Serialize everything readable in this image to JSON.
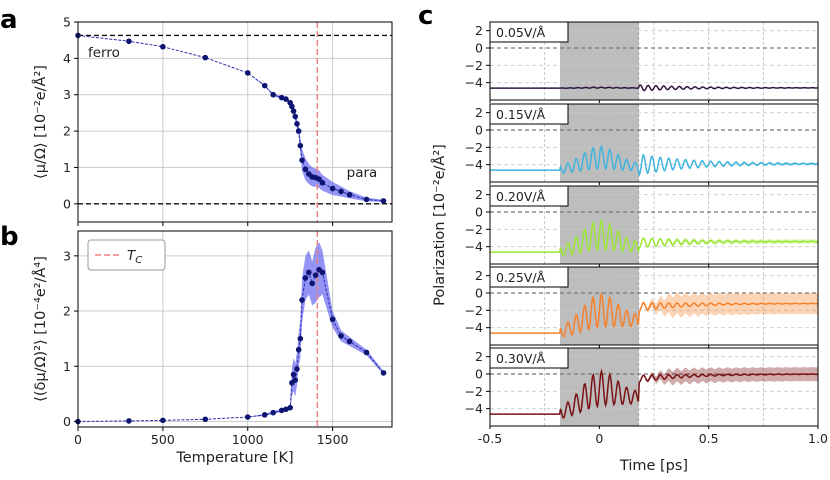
{
  "chart_data": [
    {
      "panel": "a",
      "type": "line",
      "xlabel": "",
      "ylabel": "⟨μ/Ω⟩ [10⁻²e/Å²]",
      "xlim": [
        0,
        1850
      ],
      "ylim": [
        -0.5,
        5
      ],
      "xticks": [
        0,
        500,
        1000,
        1500
      ],
      "yticks": [
        0,
        1,
        2,
        3,
        4,
        5
      ],
      "grid": true,
      "hlines": [
        4.63,
        0
      ],
      "vline": 1410,
      "annotations": [
        "ferro",
        "para"
      ],
      "series": [
        {
          "x": [
            0,
            300,
            500,
            750,
            1000,
            1100,
            1150,
            1200,
            1225,
            1250,
            1260,
            1270,
            1280,
            1290,
            1300,
            1310,
            1320,
            1340,
            1360,
            1380,
            1400,
            1420,
            1440,
            1500,
            1550,
            1600,
            1700,
            1800
          ],
          "y": [
            4.63,
            4.47,
            4.32,
            4.02,
            3.6,
            3.25,
            3.0,
            2.92,
            2.88,
            2.78,
            2.68,
            2.55,
            2.4,
            2.2,
            2.0,
            1.6,
            1.2,
            0.95,
            0.82,
            0.74,
            0.72,
            0.68,
            0.58,
            0.42,
            0.34,
            0.25,
            0.12,
            0.08
          ],
          "band": [
            0,
            0,
            0,
            0,
            0,
            0.02,
            0.03,
            0.04,
            0.04,
            0.05,
            0.06,
            0.08,
            0.1,
            0.12,
            0.14,
            0.22,
            0.3,
            0.3,
            0.28,
            0.26,
            0.25,
            0.24,
            0.22,
            0.18,
            0.14,
            0.1,
            0.05,
            0.03
          ]
        }
      ]
    },
    {
      "panel": "b",
      "type": "line",
      "xlabel": "Temperature [K]",
      "ylabel": "⟨(δμ/Ω)²⟩ [10⁻⁴e²/Å⁴]",
      "xlim": [
        0,
        1850
      ],
      "ylim": [
        -0.1,
        3.45
      ],
      "xticks": [
        0,
        500,
        1000,
        1500
      ],
      "yticks": [
        0,
        1,
        2,
        3
      ],
      "grid": true,
      "vline": 1410,
      "legend": "T_C",
      "legend_position": "upper-left",
      "series": [
        {
          "x": [
            0,
            300,
            500,
            750,
            1000,
            1100,
            1150,
            1200,
            1225,
            1250,
            1260,
            1270,
            1280,
            1290,
            1300,
            1310,
            1320,
            1340,
            1360,
            1380,
            1400,
            1420,
            1440,
            1500,
            1550,
            1600,
            1700,
            1800
          ],
          "y": [
            0.0,
            0.01,
            0.02,
            0.04,
            0.08,
            0.12,
            0.16,
            0.2,
            0.22,
            0.25,
            0.7,
            0.85,
            0.75,
            0.95,
            1.3,
            1.5,
            2.2,
            2.6,
            2.7,
            2.5,
            2.65,
            2.75,
            2.7,
            1.85,
            1.55,
            1.45,
            1.25,
            0.88
          ],
          "band": [
            0,
            0,
            0,
            0,
            0,
            0.02,
            0.02,
            0.03,
            0.03,
            0.04,
            0.25,
            0.3,
            0.3,
            0.3,
            0.3,
            0.35,
            0.4,
            0.4,
            0.4,
            0.4,
            0.5,
            0.5,
            0.4,
            0.15,
            0.1,
            0.08,
            0.05,
            0.03
          ]
        }
      ]
    },
    {
      "panel": "c",
      "type": "line",
      "xlabel": "Time [ps]",
      "ylabel": "Polarization [10⁻²e/Å²]",
      "xlim": [
        -0.5,
        1.0
      ],
      "ylim_each": [
        -6,
        3
      ],
      "xticks": [
        -0.5,
        0,
        0.5,
        1.0
      ],
      "xticklabels": [
        "-0.5",
        "0",
        "0.5",
        "1.0"
      ],
      "yticks": [
        -4,
        -2,
        0,
        2
      ],
      "shaded_time": [
        -0.18,
        0.18
      ],
      "subplots": [
        {
          "field": "0.05V/Å",
          "color": "#30163e",
          "band": 0.05,
          "baseline": -4.63,
          "amp_pulse": 0.1,
          "amp_after": 0.35,
          "relax_to": -4.6,
          "freq": 28
        },
        {
          "field": "0.15V/Å",
          "color": "#40b4dc",
          "band": 0.15,
          "baseline": -4.63,
          "amp_pulse": 2.6,
          "amp_after": 1.2,
          "relax_to": -3.9,
          "freq": 26
        },
        {
          "field": "0.20V/Å",
          "color": "#9ae635",
          "band": 0.25,
          "baseline": -4.63,
          "amp_pulse": 3.4,
          "amp_after": 0.6,
          "relax_to": -3.4,
          "freq": 26
        },
        {
          "field": "0.25V/Å",
          "color": "#f4822c",
          "band": 1.2,
          "baseline": -4.63,
          "amp_pulse": 3.8,
          "amp_after": 0.5,
          "relax_to": -1.2,
          "freq": 26
        },
        {
          "field": "0.30V/Å",
          "color": "#7a1214",
          "band": 0.8,
          "baseline": -4.63,
          "amp_pulse": 4.0,
          "amp_after": 0.4,
          "relax_to": 0.0,
          "freq": 26
        }
      ]
    }
  ],
  "labels": {
    "panel_a": "a",
    "panel_b": "b",
    "panel_c": "c"
  }
}
